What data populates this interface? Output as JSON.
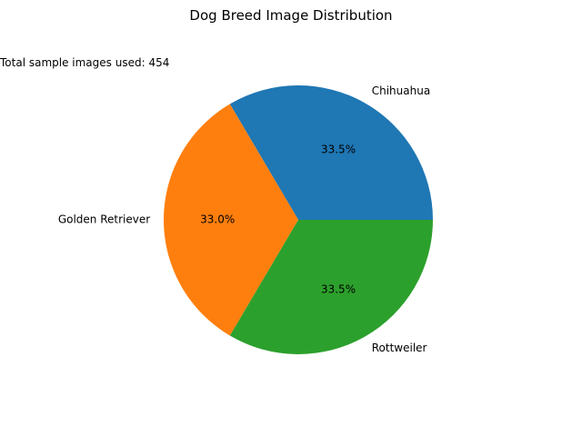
{
  "chart_data": {
    "type": "pie",
    "title": "Dog Breed Image Distribution",
    "annotation": "Total sample images used: 454",
    "labels": [
      "Chihuahua",
      "Golden Retriever",
      "Rottweiler"
    ],
    "values": [
      152,
      150,
      152
    ],
    "percent_labels": [
      "33.5%",
      "33.0%",
      "33.5%"
    ],
    "colors": [
      "#1f77b4",
      "#ff7f0e",
      "#2ca02c"
    ],
    "start_angle_deg": 0,
    "direction": "counterclockwise",
    "legend": "none"
  }
}
